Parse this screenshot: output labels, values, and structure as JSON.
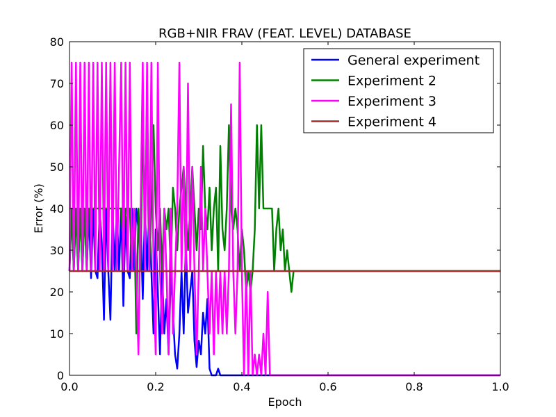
{
  "chart_data": {
    "type": "line",
    "title": "RGB+NIR FRAV (FEAT. LEVEL) DATABASE",
    "xlabel": "Epoch",
    "ylabel": "Error (%)",
    "xlim": [
      0.0,
      1.0
    ],
    "ylim": [
      0,
      80
    ],
    "xticks": [
      "0.0",
      "0.2",
      "0.4",
      "0.6",
      "0.8",
      "1.0"
    ],
    "yticks": [
      "0",
      "10",
      "20",
      "30",
      "40",
      "50",
      "60",
      "70",
      "80"
    ],
    "grid": false,
    "legend_position": "top-right",
    "series": [
      {
        "name": "General experiment",
        "color": "#0000ff",
        "points": [
          [
            0.0,
            25
          ],
          [
            0.005,
            40
          ],
          [
            0.01,
            25
          ],
          [
            0.015,
            40
          ],
          [
            0.02,
            25
          ],
          [
            0.025,
            40
          ],
          [
            0.03,
            25
          ],
          [
            0.035,
            40
          ],
          [
            0.04,
            25
          ],
          [
            0.045,
            40
          ],
          [
            0.05,
            23.3
          ],
          [
            0.055,
            40
          ],
          [
            0.06,
            25
          ],
          [
            0.065,
            23.3
          ],
          [
            0.07,
            40
          ],
          [
            0.075,
            31.6
          ],
          [
            0.08,
            13.3
          ],
          [
            0.085,
            40
          ],
          [
            0.09,
            25
          ],
          [
            0.095,
            13.3
          ],
          [
            0.1,
            40
          ],
          [
            0.105,
            25
          ],
          [
            0.11,
            40
          ],
          [
            0.115,
            25
          ],
          [
            0.12,
            40
          ],
          [
            0.125,
            16.6
          ],
          [
            0.13,
            38
          ],
          [
            0.135,
            25
          ],
          [
            0.14,
            23.3
          ],
          [
            0.145,
            40
          ],
          [
            0.15,
            25
          ],
          [
            0.155,
            40
          ],
          [
            0.16,
            35
          ],
          [
            0.165,
            38
          ],
          [
            0.17,
            18.3
          ],
          [
            0.175,
            40
          ],
          [
            0.18,
            25
          ],
          [
            0.185,
            40
          ],
          [
            0.19,
            25
          ],
          [
            0.195,
            10
          ],
          [
            0.2,
            35
          ],
          [
            0.205,
            20
          ],
          [
            0.21,
            5
          ],
          [
            0.215,
            25
          ],
          [
            0.22,
            10
          ],
          [
            0.225,
            18.3
          ],
          [
            0.23,
            5
          ],
          [
            0.235,
            25
          ],
          [
            0.24,
            15
          ],
          [
            0.245,
            5
          ],
          [
            0.25,
            1.6
          ],
          [
            0.255,
            10
          ],
          [
            0.26,
            25
          ],
          [
            0.265,
            10
          ],
          [
            0.27,
            31.6
          ],
          [
            0.275,
            15
          ],
          [
            0.28,
            20
          ],
          [
            0.285,
            25
          ],
          [
            0.29,
            8.3
          ],
          [
            0.295,
            2
          ],
          [
            0.3,
            8.3
          ],
          [
            0.305,
            5
          ],
          [
            0.31,
            15
          ],
          [
            0.315,
            10
          ],
          [
            0.32,
            18.3
          ],
          [
            0.325,
            1.6
          ],
          [
            0.33,
            0
          ],
          [
            0.34,
            0
          ],
          [
            0.345,
            1.6
          ],
          [
            0.35,
            0
          ],
          [
            0.4,
            0
          ],
          [
            0.6,
            0
          ],
          [
            0.8,
            0
          ],
          [
            1.0,
            0
          ]
        ]
      },
      {
        "name": "Experiment 2",
        "color": "#008000",
        "points": [
          [
            0.0,
            25
          ],
          [
            0.005,
            40
          ],
          [
            0.01,
            25
          ],
          [
            0.015,
            40
          ],
          [
            0.02,
            25
          ],
          [
            0.025,
            40
          ],
          [
            0.03,
            25
          ],
          [
            0.035,
            40
          ],
          [
            0.04,
            25
          ],
          [
            0.045,
            40
          ],
          [
            0.05,
            40
          ],
          [
            0.06,
            40
          ],
          [
            0.07,
            40
          ],
          [
            0.08,
            40
          ],
          [
            0.09,
            40
          ],
          [
            0.1,
            40
          ],
          [
            0.11,
            40
          ],
          [
            0.12,
            40
          ],
          [
            0.125,
            30
          ],
          [
            0.13,
            40
          ],
          [
            0.14,
            40
          ],
          [
            0.145,
            25
          ],
          [
            0.15,
            40
          ],
          [
            0.155,
            10
          ],
          [
            0.16,
            40
          ],
          [
            0.165,
            25
          ],
          [
            0.17,
            60
          ],
          [
            0.175,
            40
          ],
          [
            0.18,
            60
          ],
          [
            0.185,
            25
          ],
          [
            0.19,
            40
          ],
          [
            0.195,
            60
          ],
          [
            0.2,
            40
          ],
          [
            0.205,
            30
          ],
          [
            0.21,
            40
          ],
          [
            0.215,
            25
          ],
          [
            0.22,
            40
          ],
          [
            0.225,
            35
          ],
          [
            0.23,
            40
          ],
          [
            0.235,
            25
          ],
          [
            0.24,
            45
          ],
          [
            0.245,
            40
          ],
          [
            0.25,
            30
          ],
          [
            0.255,
            40
          ],
          [
            0.26,
            45
          ],
          [
            0.265,
            50
          ],
          [
            0.27,
            40
          ],
          [
            0.275,
            30
          ],
          [
            0.28,
            40
          ],
          [
            0.285,
            50
          ],
          [
            0.29,
            40
          ],
          [
            0.295,
            30
          ],
          [
            0.3,
            40
          ],
          [
            0.305,
            35
          ],
          [
            0.31,
            55
          ],
          [
            0.315,
            40
          ],
          [
            0.32,
            35
          ],
          [
            0.325,
            45
          ],
          [
            0.33,
            30
          ],
          [
            0.335,
            40
          ],
          [
            0.34,
            45
          ],
          [
            0.345,
            25
          ],
          [
            0.35,
            55
          ],
          [
            0.355,
            35
          ],
          [
            0.36,
            30
          ],
          [
            0.365,
            40
          ],
          [
            0.37,
            60
          ],
          [
            0.375,
            40
          ],
          [
            0.38,
            35
          ],
          [
            0.385,
            40
          ],
          [
            0.39,
            35
          ],
          [
            0.395,
            25
          ],
          [
            0.4,
            35
          ],
          [
            0.405,
            30
          ],
          [
            0.41,
            20
          ],
          [
            0.415,
            25
          ],
          [
            0.42,
            20
          ],
          [
            0.425,
            25
          ],
          [
            0.43,
            35
          ],
          [
            0.435,
            60
          ],
          [
            0.44,
            40
          ],
          [
            0.445,
            60
          ],
          [
            0.45,
            40
          ],
          [
            0.46,
            40
          ],
          [
            0.47,
            40
          ],
          [
            0.475,
            25
          ],
          [
            0.48,
            35
          ],
          [
            0.485,
            40
          ],
          [
            0.49,
            30
          ],
          [
            0.495,
            35
          ],
          [
            0.5,
            25
          ],
          [
            0.505,
            30
          ],
          [
            0.51,
            25
          ],
          [
            0.515,
            20
          ],
          [
            0.52,
            25
          ],
          [
            0.6,
            25
          ],
          [
            0.8,
            25
          ],
          [
            1.0,
            25
          ]
        ]
      },
      {
        "name": "Experiment 3",
        "color": "#ff00ff",
        "points": [
          [
            0.0,
            25
          ],
          [
            0.005,
            75
          ],
          [
            0.01,
            25
          ],
          [
            0.015,
            75
          ],
          [
            0.02,
            25
          ],
          [
            0.025,
            75
          ],
          [
            0.03,
            25
          ],
          [
            0.035,
            75
          ],
          [
            0.04,
            25
          ],
          [
            0.045,
            75
          ],
          [
            0.05,
            25
          ],
          [
            0.055,
            75
          ],
          [
            0.06,
            25
          ],
          [
            0.065,
            75
          ],
          [
            0.07,
            25
          ],
          [
            0.075,
            75
          ],
          [
            0.08,
            25
          ],
          [
            0.085,
            75
          ],
          [
            0.09,
            25
          ],
          [
            0.095,
            75
          ],
          [
            0.1,
            25
          ],
          [
            0.105,
            75
          ],
          [
            0.11,
            25
          ],
          [
            0.115,
            50
          ],
          [
            0.12,
            75
          ],
          [
            0.125,
            25
          ],
          [
            0.13,
            75
          ],
          [
            0.135,
            25
          ],
          [
            0.14,
            75
          ],
          [
            0.145,
            25
          ],
          [
            0.15,
            40
          ],
          [
            0.155,
            25
          ],
          [
            0.16,
            5
          ],
          [
            0.165,
            40
          ],
          [
            0.17,
            75
          ],
          [
            0.175,
            25
          ],
          [
            0.18,
            75
          ],
          [
            0.185,
            25
          ],
          [
            0.19,
            75
          ],
          [
            0.195,
            25
          ],
          [
            0.2,
            5
          ],
          [
            0.205,
            75
          ],
          [
            0.21,
            25
          ],
          [
            0.215,
            10
          ],
          [
            0.22,
            40
          ],
          [
            0.225,
            25
          ],
          [
            0.23,
            5
          ],
          [
            0.235,
            40
          ],
          [
            0.24,
            10
          ],
          [
            0.245,
            25
          ],
          [
            0.25,
            40
          ],
          [
            0.255,
            75
          ],
          [
            0.26,
            25
          ],
          [
            0.265,
            50
          ],
          [
            0.27,
            25
          ],
          [
            0.275,
            70
          ],
          [
            0.28,
            25
          ],
          [
            0.285,
            50
          ],
          [
            0.29,
            25
          ],
          [
            0.295,
            5
          ],
          [
            0.3,
            25
          ],
          [
            0.305,
            50
          ],
          [
            0.31,
            25
          ],
          [
            0.315,
            40
          ],
          [
            0.32,
            25
          ],
          [
            0.325,
            10
          ],
          [
            0.33,
            25
          ],
          [
            0.335,
            5
          ],
          [
            0.34,
            25
          ],
          [
            0.345,
            10
          ],
          [
            0.35,
            25
          ],
          [
            0.355,
            10
          ],
          [
            0.36,
            25
          ],
          [
            0.365,
            10
          ],
          [
            0.37,
            25
          ],
          [
            0.375,
            65
          ],
          [
            0.38,
            25
          ],
          [
            0.385,
            10
          ],
          [
            0.39,
            25
          ],
          [
            0.395,
            75
          ],
          [
            0.4,
            25
          ],
          [
            0.405,
            0
          ],
          [
            0.41,
            25
          ],
          [
            0.415,
            0
          ],
          [
            0.42,
            25
          ],
          [
            0.425,
            0
          ],
          [
            0.43,
            5
          ],
          [
            0.435,
            0
          ],
          [
            0.44,
            5
          ],
          [
            0.445,
            0
          ],
          [
            0.45,
            10
          ],
          [
            0.455,
            0
          ],
          [
            0.46,
            20
          ],
          [
            0.465,
            0
          ],
          [
            0.47,
            0
          ],
          [
            0.6,
            0
          ],
          [
            0.8,
            0
          ],
          [
            1.0,
            0
          ]
        ]
      },
      {
        "name": "Experiment 4",
        "color": "#a52a2a",
        "points": [
          [
            0.0,
            25
          ],
          [
            1.0,
            25
          ]
        ]
      }
    ]
  }
}
